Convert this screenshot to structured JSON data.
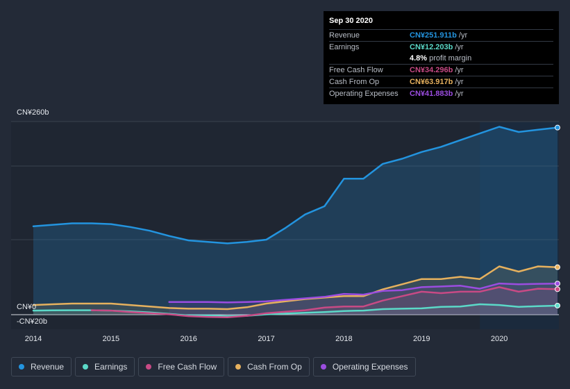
{
  "chart_data": {
    "type": "area",
    "y_axis": {
      "top_label": "CN¥260b",
      "zero_label": "CN¥0",
      "bottom_label": "-CN¥20b",
      "range": [
        -20,
        260
      ]
    },
    "x_axis": {
      "ticks": [
        "2014",
        "2015",
        "2016",
        "2017",
        "2018",
        "2019",
        "2020"
      ],
      "range": [
        2014.0,
        2020.75
      ]
    },
    "series": [
      {
        "name": "Revenue",
        "color": "#2394df",
        "points": [
          [
            2014.0,
            119
          ],
          [
            2014.25,
            121
          ],
          [
            2014.5,
            123
          ],
          [
            2014.75,
            123
          ],
          [
            2015.0,
            122
          ],
          [
            2015.25,
            118
          ],
          [
            2015.5,
            113
          ],
          [
            2015.75,
            106
          ],
          [
            2016.0,
            100
          ],
          [
            2016.25,
            98
          ],
          [
            2016.5,
            96
          ],
          [
            2016.75,
            98
          ],
          [
            2017.0,
            101
          ],
          [
            2017.25,
            117
          ],
          [
            2017.5,
            135
          ],
          [
            2017.75,
            146
          ],
          [
            2018.0,
            183
          ],
          [
            2018.25,
            183
          ],
          [
            2018.5,
            203
          ],
          [
            2018.75,
            210
          ],
          [
            2019.0,
            219
          ],
          [
            2019.25,
            226
          ],
          [
            2019.5,
            235
          ],
          [
            2019.75,
            244
          ],
          [
            2020.0,
            253
          ],
          [
            2020.25,
            246
          ],
          [
            2020.5,
            249
          ],
          [
            2020.75,
            251.911
          ]
        ]
      },
      {
        "name": "Earnings",
        "color": "#5bd9c8",
        "points": [
          [
            2014.0,
            5.5
          ],
          [
            2014.25,
            5.8
          ],
          [
            2014.5,
            6
          ],
          [
            2014.75,
            6
          ],
          [
            2015.0,
            5.5
          ],
          [
            2015.25,
            4.5
          ],
          [
            2015.5,
            3
          ],
          [
            2015.75,
            1
          ],
          [
            2016.0,
            -1
          ],
          [
            2016.25,
            -1
          ],
          [
            2016.5,
            -2
          ],
          [
            2016.75,
            -1.5
          ],
          [
            2017.0,
            0.5
          ],
          [
            2017.25,
            1.5
          ],
          [
            2017.5,
            2.5
          ],
          [
            2017.75,
            3.5
          ],
          [
            2018.0,
            5
          ],
          [
            2018.25,
            5.5
          ],
          [
            2018.5,
            7.5
          ],
          [
            2018.75,
            8
          ],
          [
            2019.0,
            8.5
          ],
          [
            2019.25,
            10.5
          ],
          [
            2019.5,
            11
          ],
          [
            2019.75,
            14
          ],
          [
            2020.0,
            13
          ],
          [
            2020.25,
            10.5
          ],
          [
            2020.5,
            11.5
          ],
          [
            2020.75,
            12.203
          ]
        ]
      },
      {
        "name": "Free Cash Flow",
        "color": "#c84a85",
        "points": [
          [
            2014.75,
            6
          ],
          [
            2015.0,
            5.5
          ],
          [
            2015.25,
            3.5
          ],
          [
            2015.5,
            2
          ],
          [
            2015.75,
            0.5
          ],
          [
            2016.0,
            -2
          ],
          [
            2016.25,
            -3
          ],
          [
            2016.5,
            -3.5
          ],
          [
            2016.75,
            -1.5
          ],
          [
            2017.0,
            2
          ],
          [
            2017.25,
            4
          ],
          [
            2017.5,
            6
          ],
          [
            2017.75,
            9.5
          ],
          [
            2018.0,
            11
          ],
          [
            2018.25,
            11
          ],
          [
            2018.5,
            19
          ],
          [
            2018.75,
            25
          ],
          [
            2019.0,
            31
          ],
          [
            2019.25,
            29
          ],
          [
            2019.5,
            31
          ],
          [
            2019.75,
            31
          ],
          [
            2020.0,
            37
          ],
          [
            2020.25,
            31
          ],
          [
            2020.5,
            35
          ],
          [
            2020.75,
            34.296
          ]
        ]
      },
      {
        "name": "Cash From Op",
        "color": "#e6b15e",
        "points": [
          [
            2014.0,
            13
          ],
          [
            2014.25,
            14
          ],
          [
            2014.5,
            15
          ],
          [
            2014.75,
            15
          ],
          [
            2015.0,
            15
          ],
          [
            2015.25,
            13
          ],
          [
            2015.5,
            11
          ],
          [
            2015.75,
            9
          ],
          [
            2016.0,
            8
          ],
          [
            2016.25,
            8
          ],
          [
            2016.5,
            7.5
          ],
          [
            2016.75,
            10
          ],
          [
            2017.0,
            15
          ],
          [
            2017.25,
            18
          ],
          [
            2017.5,
            21
          ],
          [
            2017.75,
            23
          ],
          [
            2018.0,
            25
          ],
          [
            2018.25,
            25
          ],
          [
            2018.5,
            34
          ],
          [
            2018.75,
            41
          ],
          [
            2019.0,
            48
          ],
          [
            2019.25,
            48
          ],
          [
            2019.5,
            51
          ],
          [
            2019.75,
            48
          ],
          [
            2020.0,
            65
          ],
          [
            2020.25,
            58
          ],
          [
            2020.5,
            65
          ],
          [
            2020.75,
            63.917
          ]
        ]
      },
      {
        "name": "Operating Expenses",
        "color": "#9b4de0",
        "points": [
          [
            2015.75,
            17
          ],
          [
            2016.0,
            17
          ],
          [
            2016.25,
            17
          ],
          [
            2016.5,
            16.5
          ],
          [
            2016.75,
            17
          ],
          [
            2017.0,
            18
          ],
          [
            2017.25,
            20
          ],
          [
            2017.5,
            22
          ],
          [
            2017.75,
            24
          ],
          [
            2018.0,
            28
          ],
          [
            2018.25,
            27
          ],
          [
            2018.5,
            32
          ],
          [
            2018.75,
            33
          ],
          [
            2019.0,
            37
          ],
          [
            2019.25,
            38
          ],
          [
            2019.5,
            39
          ],
          [
            2019.75,
            35
          ],
          [
            2020.0,
            42
          ],
          [
            2020.25,
            41
          ],
          [
            2020.5,
            41.5
          ],
          [
            2020.75,
            41.883
          ]
        ]
      }
    ],
    "highlight_start": 2019.75
  },
  "tooltip": {
    "date": "Sep 30 2020",
    "rows": [
      {
        "label": "Revenue",
        "value": "CN¥251.911b",
        "unit": "/yr",
        "color": "#2394df"
      },
      {
        "label": "Earnings",
        "value": "CN¥12.203b",
        "unit": "/yr",
        "color": "#5bd9c8"
      },
      {
        "label": "",
        "value": "4.8%",
        "unit": "profit margin",
        "color": "#ffffff"
      },
      {
        "label": "Free Cash Flow",
        "value": "CN¥34.296b",
        "unit": "/yr",
        "color": "#c84a85"
      },
      {
        "label": "Cash From Op",
        "value": "CN¥63.917b",
        "unit": "/yr",
        "color": "#e6b15e"
      },
      {
        "label": "Operating Expenses",
        "value": "CN¥41.883b",
        "unit": "/yr",
        "color": "#9b4de0"
      }
    ]
  },
  "legend": [
    {
      "label": "Revenue",
      "color": "#2394df"
    },
    {
      "label": "Earnings",
      "color": "#5bd9c8"
    },
    {
      "label": "Free Cash Flow",
      "color": "#c84a85"
    },
    {
      "label": "Cash From Op",
      "color": "#e6b15e"
    },
    {
      "label": "Operating Expenses",
      "color": "#9b4de0"
    }
  ]
}
